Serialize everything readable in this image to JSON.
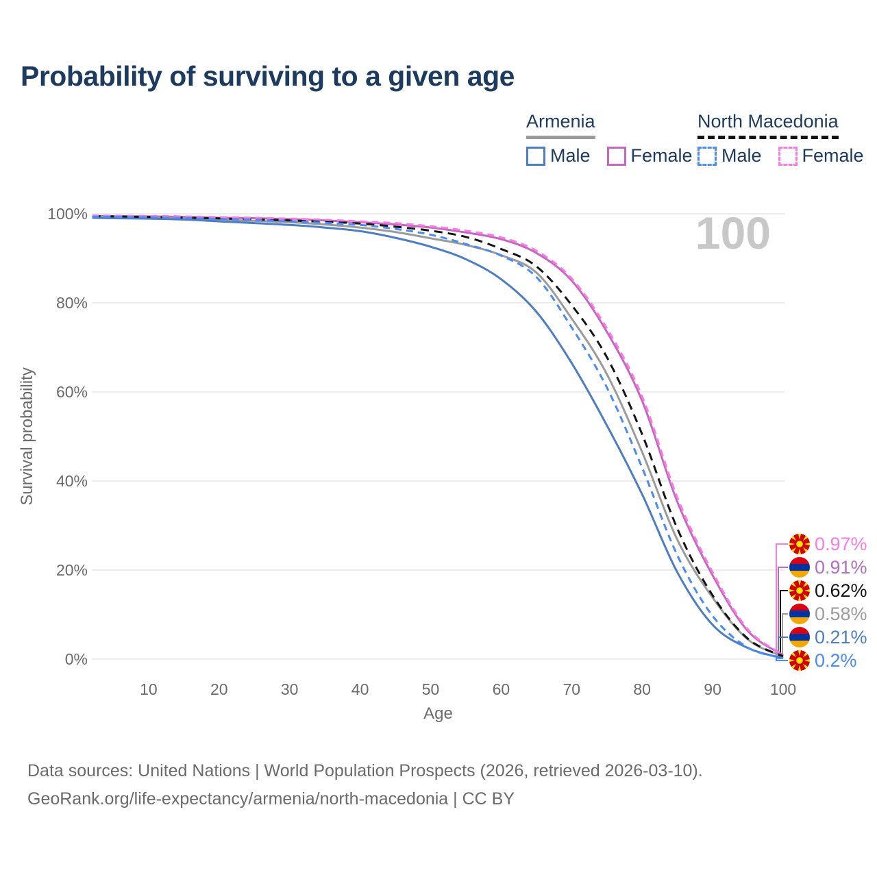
{
  "title": "Probability of surviving to a given age",
  "legend": {
    "groups": [
      {
        "label": "Armenia",
        "line_style": "solid",
        "line_color": "#9b9b9b",
        "items": [
          {
            "label": "Male",
            "color": "#4d7ec2",
            "dashed": false
          },
          {
            "label": "Female",
            "color": "#c566c3",
            "dashed": false
          }
        ]
      },
      {
        "label": "North Macedonia",
        "line_style": "dashed",
        "line_color": "#141414",
        "items": [
          {
            "label": "Male",
            "color": "#4b8bf5",
            "dashed": true
          },
          {
            "label": "Female",
            "color": "#f97ce3",
            "dashed": true
          }
        ]
      }
    ]
  },
  "chart_data": {
    "type": "line",
    "title": "Probability of surviving to a given age",
    "xlabel": "Age",
    "ylabel": "Survival probability",
    "xlim": [
      0,
      100
    ],
    "ylim": [
      0,
      100
    ],
    "grid": true,
    "watermark": "100",
    "x": [
      2,
      5,
      10,
      15,
      20,
      25,
      30,
      35,
      40,
      45,
      50,
      55,
      60,
      65,
      70,
      75,
      80,
      85,
      90,
      95,
      100
    ],
    "xticks": [
      10,
      20,
      30,
      40,
      50,
      60,
      70,
      80,
      90,
      100
    ],
    "ytick_values": [
      0,
      20,
      40,
      60,
      80,
      100
    ],
    "ytick_labels": [
      "0%",
      "20%",
      "40%",
      "60%",
      "80%",
      "100%"
    ],
    "series": [
      {
        "id": "armenia-female",
        "name": "Armenia Female",
        "color": "#c566c3",
        "dashed": false,
        "values": [
          99.5,
          99.45,
          99.4,
          99.3,
          99.1,
          99.0,
          98.8,
          98.5,
          98.1,
          97.6,
          96.9,
          95.8,
          94.3,
          91.2,
          85.0,
          73.5,
          58.0,
          35.3,
          18.8,
          6.3,
          0.91
        ]
      },
      {
        "id": "armenia-total",
        "name": "Armenia (both sexes)",
        "color": "#9b9b9b",
        "dashed": false,
        "values": [
          99.3,
          99.25,
          99.15,
          98.95,
          98.65,
          98.4,
          98.1,
          97.6,
          96.9,
          95.9,
          94.5,
          93.0,
          90.7,
          86.8,
          76.5,
          64.0,
          46.5,
          26.8,
          13.8,
          4.4,
          0.58
        ]
      },
      {
        "id": "armenia-male",
        "name": "Armenia Male",
        "color": "#4d7ec2",
        "dashed": false,
        "values": [
          99.1,
          99.0,
          98.9,
          98.7,
          98.3,
          97.9,
          97.5,
          96.9,
          96.1,
          94.6,
          92.6,
          89.8,
          85.3,
          78.0,
          66.5,
          52.5,
          37.0,
          19.5,
          7.7,
          2.5,
          0.21
        ]
      },
      {
        "id": "nm-total",
        "name": "North Macedonia (both sexes)",
        "color": "#141414",
        "dashed": true,
        "values": [
          99.45,
          99.4,
          99.3,
          99.15,
          98.95,
          98.75,
          98.5,
          98.2,
          97.8,
          97.1,
          96.2,
          94.8,
          92.1,
          88.2,
          79.5,
          67.8,
          50.5,
          29.3,
          14.3,
          4.6,
          0.62
        ]
      },
      {
        "id": "nm-female",
        "name": "North Macedonia Female",
        "color": "#f97ce3",
        "dashed": true,
        "values": [
          99.6,
          99.55,
          99.5,
          99.4,
          99.25,
          99.1,
          98.9,
          98.65,
          98.3,
          97.9,
          97.2,
          96.2,
          94.7,
          91.7,
          85.5,
          74.3,
          59.0,
          36.3,
          19.5,
          6.7,
          0.97
        ]
      },
      {
        "id": "nm-male",
        "name": "North Macedonia Male",
        "color": "#4b8bf5",
        "dashed": true,
        "values": [
          99.35,
          99.3,
          99.2,
          99.05,
          98.85,
          98.6,
          98.3,
          97.95,
          97.5,
          96.6,
          95.3,
          93.2,
          90.6,
          85.8,
          74.5,
          61.0,
          43.0,
          23.3,
          9.7,
          2.6,
          0.2
        ]
      }
    ]
  },
  "end_labels": [
    {
      "series": "nm-female",
      "flag": "north-macedonia",
      "text": "0.97%",
      "color": "#f97ce3",
      "end": 0.97
    },
    {
      "series": "armenia-female",
      "flag": "armenia",
      "text": "0.91%",
      "color": "#b36ec1",
      "end": 0.91
    },
    {
      "series": "nm-total",
      "flag": "north-macedonia",
      "text": "0.62%",
      "color": "#141414",
      "end": 0.62
    },
    {
      "series": "armenia-total",
      "flag": "armenia",
      "text": "0.58%",
      "color": "#9b9b9b",
      "end": 0.58
    },
    {
      "series": "armenia-male",
      "flag": "armenia",
      "text": "0.21%",
      "color": "#4d7ec2",
      "end": 0.21
    },
    {
      "series": "nm-male",
      "flag": "north-macedonia",
      "text": "0.2%",
      "color": "#4b8bf5",
      "end": 0.2
    }
  ],
  "flag_colors": {
    "armenia": [
      "#d90012",
      "#0033a0",
      "#f2a800"
    ],
    "north_macedonia": {
      "field": "#d20000",
      "sun": "#ffe600"
    }
  },
  "footer": {
    "line1": "Data sources: United Nations | World Population Prospects (2026, retrieved 2026-03-10).",
    "line2": "GeoRank.org/life-expectancy/armenia/north-macedonia | CC BY"
  }
}
